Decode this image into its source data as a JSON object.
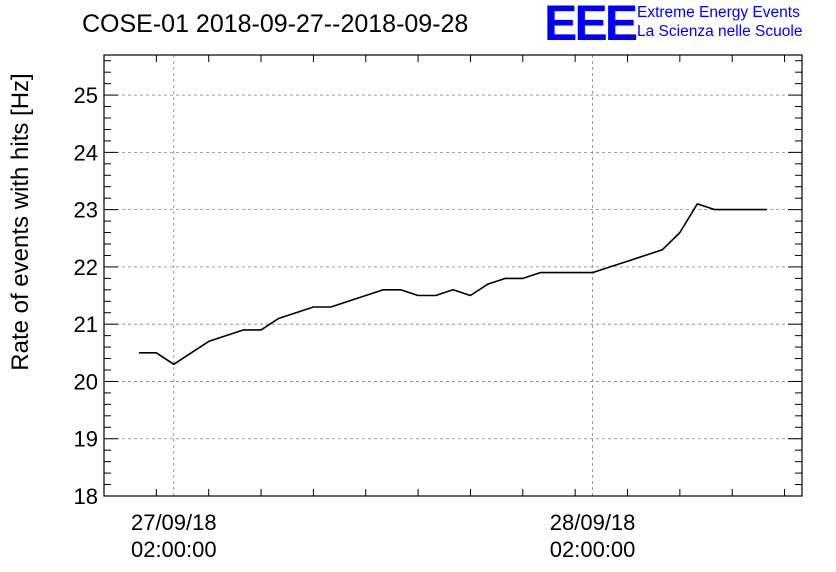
{
  "header": {
    "title": "COSE-01 2018-09-27--2018-09-28",
    "logo_mark": "EEE",
    "logo_line1": "Extreme Energy Events",
    "logo_line2": "La Scienza nelle Scuole"
  },
  "colors": {
    "series": "#000000",
    "logo": "#0000ff",
    "grid": "#808080"
  },
  "chart_data": {
    "type": "line",
    "title": "COSE-01 2018-09-27--2018-09-28",
    "ylabel": "Rate of events with hits [Hz]",
    "xlabel": "",
    "ylim": [
      18,
      25.7
    ],
    "yticks": [
      18,
      19,
      20,
      21,
      22,
      23,
      24,
      25
    ],
    "xlim": [
      "2018-09-26T22:00:00",
      "2018-09-28T14:00:00"
    ],
    "xticks": [
      {
        "x": "2018-09-27T02:00:00",
        "line1": "27/09/18",
        "line2": "02:00:00"
      },
      {
        "x": "2018-09-28T02:00:00",
        "line1": "28/09/18",
        "line2": "02:00:00"
      }
    ],
    "grid": true,
    "series": [
      {
        "points": [
          [
            "2018-09-27T00:00",
            20.5
          ],
          [
            "2018-09-27T01:00",
            20.5
          ],
          [
            "2018-09-27T02:00",
            20.3
          ],
          [
            "2018-09-27T03:00",
            20.5
          ],
          [
            "2018-09-27T04:00",
            20.7
          ],
          [
            "2018-09-27T05:00",
            20.8
          ],
          [
            "2018-09-27T06:00",
            20.9
          ],
          [
            "2018-09-27T07:00",
            20.9
          ],
          [
            "2018-09-27T08:00",
            21.1
          ],
          [
            "2018-09-27T09:00",
            21.2
          ],
          [
            "2018-09-27T10:00",
            21.3
          ],
          [
            "2018-09-27T11:00",
            21.3
          ],
          [
            "2018-09-27T12:00",
            21.4
          ],
          [
            "2018-09-27T13:00",
            21.5
          ],
          [
            "2018-09-27T14:00",
            21.6
          ],
          [
            "2018-09-27T15:00",
            21.6
          ],
          [
            "2018-09-27T16:00",
            21.5
          ],
          [
            "2018-09-27T17:00",
            21.5
          ],
          [
            "2018-09-27T18:00",
            21.6
          ],
          [
            "2018-09-27T19:00",
            21.5
          ],
          [
            "2018-09-27T20:00",
            21.7
          ],
          [
            "2018-09-27T21:00",
            21.8
          ],
          [
            "2018-09-27T22:00",
            21.8
          ],
          [
            "2018-09-27T23:00",
            21.9
          ],
          [
            "2018-09-28T00:00",
            21.9
          ],
          [
            "2018-09-28T01:00",
            21.9
          ],
          [
            "2018-09-28T02:00",
            21.9
          ],
          [
            "2018-09-28T03:00",
            22.0
          ],
          [
            "2018-09-28T04:00",
            22.1
          ],
          [
            "2018-09-28T05:00",
            22.2
          ],
          [
            "2018-09-28T06:00",
            22.3
          ],
          [
            "2018-09-28T07:00",
            22.6
          ],
          [
            "2018-09-28T08:00",
            23.1
          ],
          [
            "2018-09-28T09:00",
            23.0
          ],
          [
            "2018-09-28T10:00",
            23.0
          ],
          [
            "2018-09-28T11:00",
            23.0
          ],
          [
            "2018-09-28T12:00",
            23.0
          ]
        ]
      }
    ]
  }
}
